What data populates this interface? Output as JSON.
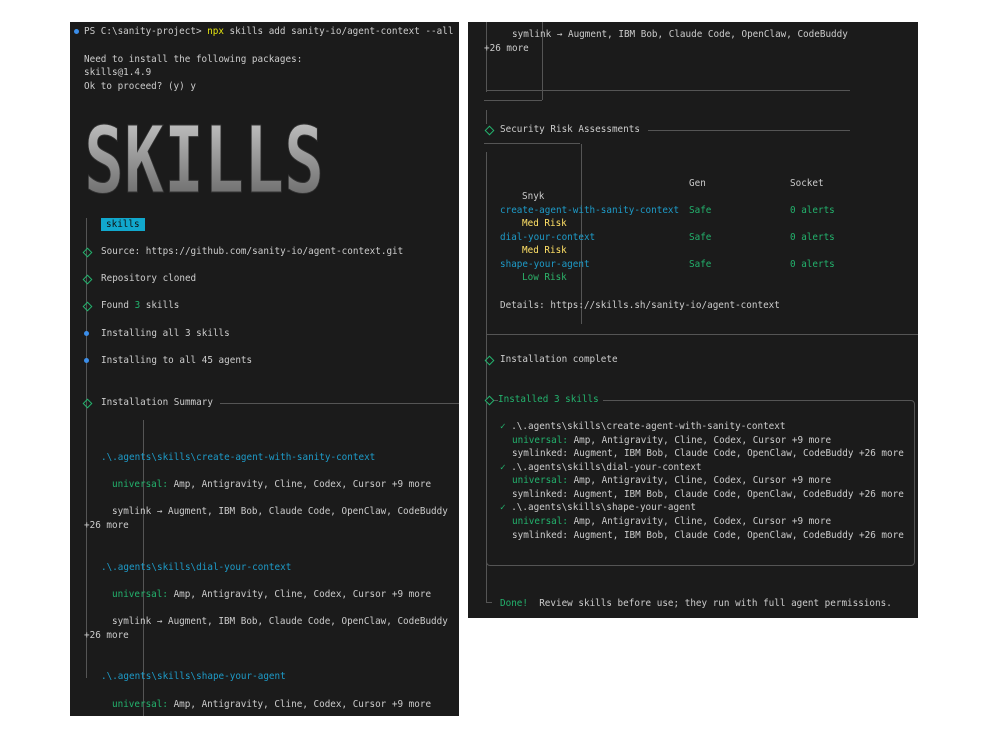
{
  "left": {
    "prompt": {
      "ps": "PS C:\\sanity-project> ",
      "cmd": "npx",
      "args": " skills add sanity-io/agent-context --all"
    },
    "install_msg": [
      "Need to install the following packages:",
      "skills@1.4.9",
      "Ok to proceed? (y) y"
    ],
    "logo": "SKILLS",
    "badge": "skills",
    "steps": [
      "Source: https://github.com/sanity-io/agent-context.git",
      "Repository cloned",
      "Found ",
      "3",
      " skills",
      "Installing all 3 skills",
      "Installing to all 45 agents"
    ],
    "summary_title": "Installation Summary",
    "skills": [
      {
        "path": ".\\.agents\\skills\\create-agent-with-sanity-context",
        "universal_label": "universal:",
        "universal": " Amp, Antigravity, Cline, Codex, Cursor +9 more",
        "symlink": "symlink → Augment, IBM Bob, Claude Code, OpenClaw, CodeBuddy",
        "more": "+26 more"
      },
      {
        "path": ".\\.agents\\skills\\dial-your-context",
        "universal_label": "universal:",
        "universal": " Amp, Antigravity, Cline, Codex, Cursor +9 more",
        "symlink": "symlink → Augment, IBM Bob, Claude Code, OpenClaw, CodeBuddy",
        "more": "+26 more"
      },
      {
        "path": ".\\.agents\\skills\\shape-your-agent",
        "universal_label": "universal:",
        "universal": " Amp, Antigravity, Cline, Codex, Cursor +9 more"
      }
    ]
  },
  "right": {
    "top_symlink": "symlink → Augment, IBM Bob, Claude Code, OpenClaw, CodeBuddy",
    "top_more": "+26 more",
    "security_title": "Security Risk Assessments",
    "headers": {
      "gen": "Gen",
      "socket": "Socket",
      "snyk": "Snyk"
    },
    "rows": [
      {
        "name": "create-agent-with-sanity-context",
        "gen": "Safe",
        "socket": "0 alerts",
        "snyk": "Med Risk"
      },
      {
        "name": "dial-your-context",
        "gen": "Safe",
        "socket": "0 alerts",
        "snyk": "Med Risk"
      },
      {
        "name": "shape-your-agent",
        "gen": "Safe",
        "socket": "0 alerts",
        "snyk": "Low Risk"
      }
    ],
    "details": "Details: https://skills.sh/sanity-io/agent-context",
    "complete": "Installation complete",
    "installed_title": "Installed 3 skills",
    "installed": [
      {
        "check": "✓",
        "path": " .\\.agents\\skills\\create-agent-with-sanity-context",
        "universal_label": "universal:",
        "universal": " Amp, Antigravity, Cline, Codex, Cursor +9 more",
        "symlinked": "symlinked: Augment, IBM Bob, Claude Code, OpenClaw, CodeBuddy +26 more"
      },
      {
        "check": "✓",
        "path": " .\\.agents\\skills\\dial-your-context",
        "universal_label": "universal:",
        "universal": " Amp, Antigravity, Cline, Codex, Cursor +9 more",
        "symlinked": "symlinked: Augment, IBM Bob, Claude Code, OpenClaw, CodeBuddy +26 more"
      },
      {
        "check": "✓",
        "path": " .\\.agents\\skills\\shape-your-agent",
        "universal_label": "universal:",
        "universal": " Amp, Antigravity, Cline, Codex, Cursor +9 more",
        "symlinked": "symlinked: Augment, IBM Bob, Claude Code, OpenClaw, CodeBuddy +26 more"
      }
    ],
    "done": "Done!",
    "done_msg": "  Review skills before use; they run with full agent permissions."
  },
  "colors": {
    "bg": "#1b1b1b",
    "green": "#23b26d",
    "cyan": "#1e9bc8",
    "yellow": "#e5e510",
    "badge": "#11a8cd"
  }
}
